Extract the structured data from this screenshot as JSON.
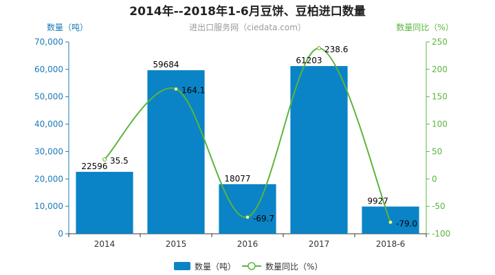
{
  "chart_data": {
    "type": "bar",
    "title": "2014年--2018年1-6月豆饼、豆柏进口数量",
    "subtitle": "进出口服务网（ciedata.com）",
    "categories": [
      "2014",
      "2015",
      "2016",
      "2017",
      "2018-6"
    ],
    "series": [
      {
        "name": "数量（吨）",
        "type": "bar",
        "axis": "left",
        "values": [
          22596,
          59684,
          18077,
          61203,
          9927
        ],
        "labels": [
          "22596",
          "59684",
          "18077",
          "61203",
          "9927"
        ],
        "color": "#0a84c6"
      },
      {
        "name": "数量同比（%）",
        "type": "line",
        "axis": "right",
        "values": [
          35.5,
          164.1,
          -69.7,
          238.6,
          -79.0
        ],
        "labels": [
          "35.5",
          "164.1",
          "-69.7",
          "238.6",
          "-79.0"
        ],
        "color": "#5ab43d"
      }
    ],
    "y_left": {
      "label": "数量（吨）",
      "ylim": [
        0,
        70000
      ],
      "ticks": [
        0,
        10000,
        20000,
        30000,
        40000,
        50000,
        60000,
        70000
      ],
      "tick_labels": [
        "0",
        "10,000",
        "20,000",
        "30,000",
        "40,000",
        "50,000",
        "60,000",
        "70,000"
      ],
      "color": "#1a7ab8"
    },
    "y_right": {
      "label": "数量同比（%）",
      "ylim": [
        -100,
        250
      ],
      "ticks": [
        -100,
        -50,
        0,
        50,
        100,
        150,
        200,
        250
      ],
      "tick_labels": [
        "-100",
        "-50",
        "0",
        "50",
        "100",
        "150",
        "200",
        "250"
      ],
      "color": "#5ab43d"
    },
    "grid": false,
    "legend_position": "bottom-center"
  }
}
